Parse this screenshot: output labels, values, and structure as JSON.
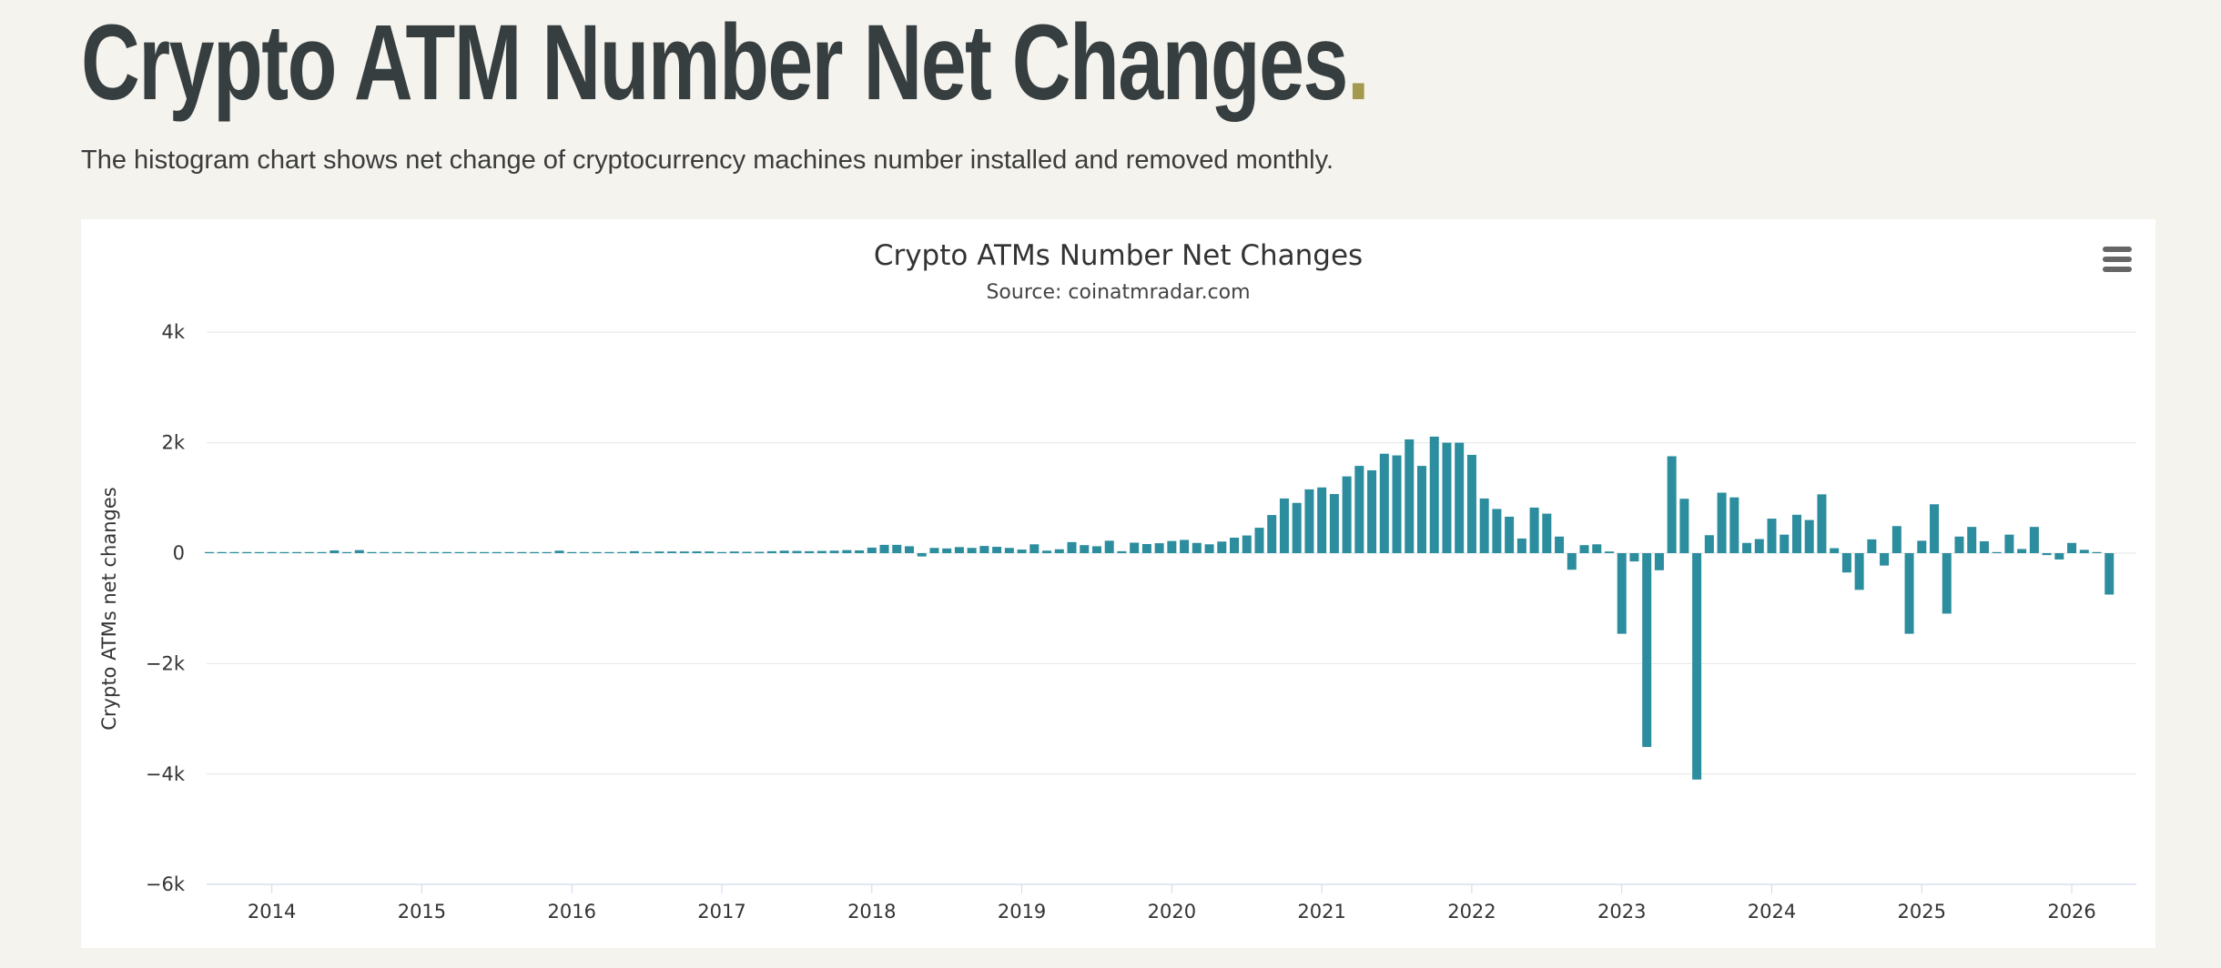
{
  "page": {
    "title": "Crypto ATM Number Net Changes",
    "title_accent": ".",
    "subtitle": "The histogram chart shows net change of cryptocurrency machines number installed and removed monthly.",
    "background_color": "#f4f3ee",
    "title_color": "#363e40",
    "accent_color": "#a49a4e"
  },
  "chart": {
    "title": "Crypto ATMs Number Net Changes",
    "subtitle": "Source: coinatmradar.com",
    "menu_icon": "hamburger-icon",
    "bar_color": "#2b8d9e",
    "grid_color": "#e6e6e6",
    "axis_line_color": "#ccd6eb",
    "label_color": "#333333",
    "background_color": "#ffffff"
  },
  "chart_data": {
    "type": "bar",
    "title": "Crypto ATMs Number Net Changes",
    "subtitle": "Source: coinatmradar.com",
    "xlabel": "",
    "ylabel": "Crypto ATMs net changes",
    "ylim": [
      -6000,
      4000
    ],
    "grid": true,
    "legend": "none",
    "y_ticks": {
      "values": [
        4000,
        2000,
        0,
        -2000,
        -4000,
        -6000
      ],
      "labels": [
        "4k",
        "2k",
        "0",
        "−2k",
        "−4k",
        "−6k"
      ]
    },
    "x_tick_labels": [
      "2014",
      "2015",
      "2016",
      "2017",
      "2018",
      "2019",
      "2020",
      "2021",
      "2022",
      "2023",
      "2024",
      "2025",
      "2026"
    ],
    "first_tick_month_index": 5,
    "start_month": "2013-08",
    "monthly_net_change": [
      5,
      8,
      10,
      10,
      12,
      12,
      15,
      15,
      5,
      5,
      50,
      5,
      55,
      5,
      5,
      5,
      8,
      12,
      5,
      5,
      5,
      5,
      5,
      5,
      5,
      5,
      12,
      5,
      45,
      5,
      5,
      5,
      5,
      5,
      35,
      5,
      30,
      30,
      30,
      32,
      30,
      8,
      30,
      25,
      25,
      35,
      45,
      40,
      35,
      40,
      45,
      55,
      50,
      100,
      150,
      150,
      125,
      -60,
      95,
      85,
      110,
      95,
      130,
      115,
      95,
      65,
      160,
      45,
      70,
      200,
      145,
      125,
      225,
      35,
      190,
      165,
      180,
      220,
      240,
      185,
      160,
      210,
      280,
      320,
      460,
      690,
      990,
      910,
      1155,
      1190,
      1070,
      1390,
      1580,
      1500,
      1800,
      1770,
      2060,
      1580,
      2110,
      2000,
      2000,
      1780,
      990,
      800,
      660,
      265,
      825,
      715,
      300,
      -300,
      145,
      160,
      30,
      -1460,
      -150,
      -3510,
      -310,
      1755,
      985,
      -4100,
      325,
      1095,
      1010,
      185,
      255,
      625,
      335,
      695,
      600,
      1065,
      90,
      -350,
      -665,
      250,
      -225,
      490,
      -1460,
      225,
      885,
      -1095,
      300,
      475,
      215,
      10,
      335,
      75,
      475,
      -35,
      -115,
      185,
      60,
      10,
      -750
    ]
  }
}
